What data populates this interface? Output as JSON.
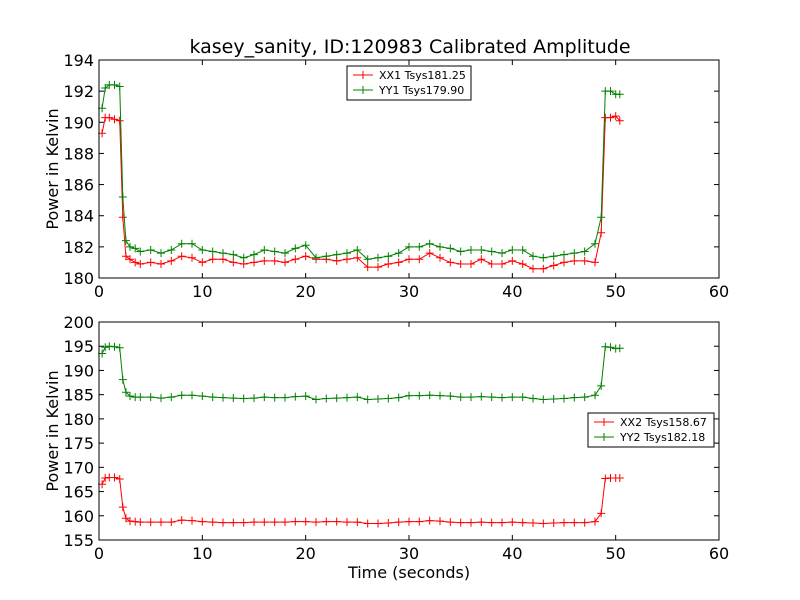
{
  "chart_data": [
    {
      "type": "line",
      "title": "kasey_sanity, ID:120983 Calibrated Amplitude",
      "xlabel": "",
      "ylabel": "Power in Kelvin",
      "xlim": [
        0,
        60
      ],
      "ylim": [
        180,
        194
      ],
      "xticks": [
        "0",
        "10",
        "20",
        "30",
        "40",
        "50",
        "60"
      ],
      "yticks": [
        "180",
        "182",
        "184",
        "186",
        "188",
        "190",
        "192",
        "194"
      ],
      "grid": false,
      "legend_position": "top-center",
      "markers": "plus",
      "series": [
        {
          "name": "XX1 Tsys181.25",
          "color": "#ff0000",
          "x": [
            0.3,
            0.6,
            1.0,
            1.5,
            2.0,
            2.3,
            2.6,
            3.0,
            3.5,
            4.0,
            5.0,
            6.0,
            7.0,
            8.0,
            9.0,
            10.0,
            11.0,
            12.0,
            13.0,
            14.0,
            15.0,
            16.0,
            17.0,
            18.0,
            19.0,
            20.0,
            21.0,
            22.0,
            23.0,
            24.0,
            25.0,
            26.0,
            27.0,
            28.0,
            29.0,
            30.0,
            31.0,
            32.0,
            33.0,
            34.0,
            35.0,
            36.0,
            37.0,
            38.0,
            39.0,
            40.0,
            41.0,
            42.0,
            43.0,
            44.0,
            45.0,
            46.0,
            47.0,
            48.0,
            48.6,
            49.0,
            49.5,
            50.0,
            50.4
          ],
          "y": [
            189.3,
            190.3,
            190.3,
            190.2,
            190.1,
            183.9,
            181.4,
            181.2,
            181.0,
            180.9,
            181.0,
            180.9,
            181.1,
            181.4,
            181.3,
            181.0,
            181.2,
            181.2,
            181.0,
            180.9,
            181.0,
            181.1,
            181.1,
            181.0,
            181.2,
            181.4,
            181.2,
            181.2,
            181.1,
            181.2,
            181.3,
            180.7,
            180.7,
            180.9,
            181.0,
            181.2,
            181.2,
            181.6,
            181.3,
            181.0,
            180.9,
            180.9,
            181.2,
            180.9,
            180.9,
            181.1,
            180.9,
            180.6,
            180.6,
            180.8,
            181.0,
            181.1,
            181.1,
            181.0,
            182.9,
            190.3,
            190.3,
            190.4,
            190.1
          ]
        },
        {
          "name": "YY1 Tsys179.90",
          "color": "#008000",
          "x": [
            0.3,
            0.6,
            1.0,
            1.5,
            2.0,
            2.3,
            2.6,
            3.0,
            3.5,
            4.0,
            5.0,
            6.0,
            7.0,
            8.0,
            9.0,
            10.0,
            11.0,
            12.0,
            13.0,
            14.0,
            15.0,
            16.0,
            17.0,
            18.0,
            19.0,
            20.0,
            21.0,
            22.0,
            23.0,
            24.0,
            25.0,
            26.0,
            27.0,
            28.0,
            29.0,
            30.0,
            31.0,
            32.0,
            33.0,
            34.0,
            35.0,
            36.0,
            37.0,
            38.0,
            39.0,
            40.0,
            41.0,
            42.0,
            43.0,
            44.0,
            45.0,
            46.0,
            47.0,
            48.0,
            48.6,
            49.0,
            49.5,
            50.0,
            50.4
          ],
          "y": [
            190.9,
            192.2,
            192.4,
            192.4,
            192.3,
            185.2,
            182.4,
            182.0,
            181.9,
            181.7,
            181.8,
            181.6,
            181.8,
            182.2,
            182.2,
            181.8,
            181.7,
            181.6,
            181.5,
            181.3,
            181.5,
            181.8,
            181.7,
            181.6,
            181.9,
            182.1,
            181.3,
            181.4,
            181.5,
            181.6,
            181.8,
            181.2,
            181.3,
            181.4,
            181.6,
            182.0,
            182.0,
            182.2,
            182.0,
            181.9,
            181.7,
            181.8,
            181.8,
            181.7,
            181.6,
            181.8,
            181.8,
            181.4,
            181.3,
            181.4,
            181.5,
            181.6,
            181.7,
            182.2,
            183.9,
            192.0,
            192.0,
            191.8,
            191.8
          ]
        }
      ]
    },
    {
      "type": "line",
      "title": "",
      "xlabel": "Time (seconds)",
      "ylabel": "Power in Kelvin",
      "xlim": [
        0,
        60
      ],
      "ylim": [
        155,
        200
      ],
      "xticks": [
        "0",
        "10",
        "20",
        "30",
        "40",
        "50",
        "60"
      ],
      "yticks": [
        "155",
        "160",
        "165",
        "170",
        "175",
        "180",
        "185",
        "190",
        "195",
        "200"
      ],
      "grid": false,
      "legend_position": "right",
      "markers": "plus",
      "series": [
        {
          "name": "XX2 Tsys158.67",
          "color": "#ff0000",
          "x": [
            0.3,
            0.6,
            1.0,
            1.5,
            2.0,
            2.3,
            2.6,
            3.0,
            3.5,
            4.0,
            5.0,
            6.0,
            7.0,
            8.0,
            9.0,
            10.0,
            11.0,
            12.0,
            13.0,
            14.0,
            15.0,
            16.0,
            17.0,
            18.0,
            19.0,
            20.0,
            21.0,
            22.0,
            23.0,
            24.0,
            25.0,
            26.0,
            27.0,
            28.0,
            29.0,
            30.0,
            31.0,
            32.0,
            33.0,
            34.0,
            35.0,
            36.0,
            37.0,
            38.0,
            39.0,
            40.0,
            41.0,
            42.0,
            43.0,
            44.0,
            45.0,
            46.0,
            47.0,
            48.0,
            48.6,
            49.0,
            49.5,
            50.0,
            50.4
          ],
          "y": [
            166.5,
            167.8,
            167.9,
            167.9,
            167.6,
            161.8,
            159.5,
            158.9,
            158.8,
            158.7,
            158.7,
            158.7,
            158.7,
            159.1,
            159.0,
            158.8,
            158.7,
            158.6,
            158.6,
            158.6,
            158.7,
            158.7,
            158.7,
            158.7,
            158.8,
            158.8,
            158.7,
            158.8,
            158.8,
            158.7,
            158.7,
            158.4,
            158.4,
            158.5,
            158.7,
            158.8,
            158.8,
            159.0,
            158.9,
            158.7,
            158.6,
            158.6,
            158.7,
            158.6,
            158.6,
            158.7,
            158.6,
            158.5,
            158.4,
            158.5,
            158.6,
            158.6,
            158.6,
            158.8,
            160.5,
            167.7,
            167.8,
            167.8,
            167.8
          ]
        },
        {
          "name": "YY2 Tsys182.18",
          "color": "#008000",
          "x": [
            0.3,
            0.6,
            1.0,
            1.5,
            2.0,
            2.3,
            2.6,
            3.0,
            3.5,
            4.0,
            5.0,
            6.0,
            7.0,
            8.0,
            9.0,
            10.0,
            11.0,
            12.0,
            13.0,
            14.0,
            15.0,
            16.0,
            17.0,
            18.0,
            19.0,
            20.0,
            21.0,
            22.0,
            23.0,
            24.0,
            25.0,
            26.0,
            27.0,
            28.0,
            29.0,
            30.0,
            31.0,
            32.0,
            33.0,
            34.0,
            35.0,
            36.0,
            37.0,
            38.0,
            39.0,
            40.0,
            41.0,
            42.0,
            43.0,
            44.0,
            45.0,
            46.0,
            47.0,
            48.0,
            48.6,
            49.0,
            49.5,
            50.0,
            50.4
          ],
          "y": [
            193.5,
            194.8,
            195.0,
            194.9,
            194.7,
            188.1,
            185.5,
            184.7,
            184.5,
            184.5,
            184.5,
            184.3,
            184.5,
            184.9,
            184.9,
            184.7,
            184.5,
            184.4,
            184.3,
            184.2,
            184.3,
            184.5,
            184.4,
            184.4,
            184.6,
            184.7,
            184.0,
            184.2,
            184.3,
            184.4,
            184.5,
            184.0,
            184.1,
            184.2,
            184.4,
            184.8,
            184.8,
            184.9,
            184.8,
            184.7,
            184.5,
            184.5,
            184.6,
            184.5,
            184.4,
            184.5,
            184.5,
            184.2,
            184.0,
            184.1,
            184.2,
            184.4,
            184.5,
            184.9,
            186.8,
            194.9,
            194.8,
            194.5,
            194.6
          ]
        }
      ]
    }
  ]
}
